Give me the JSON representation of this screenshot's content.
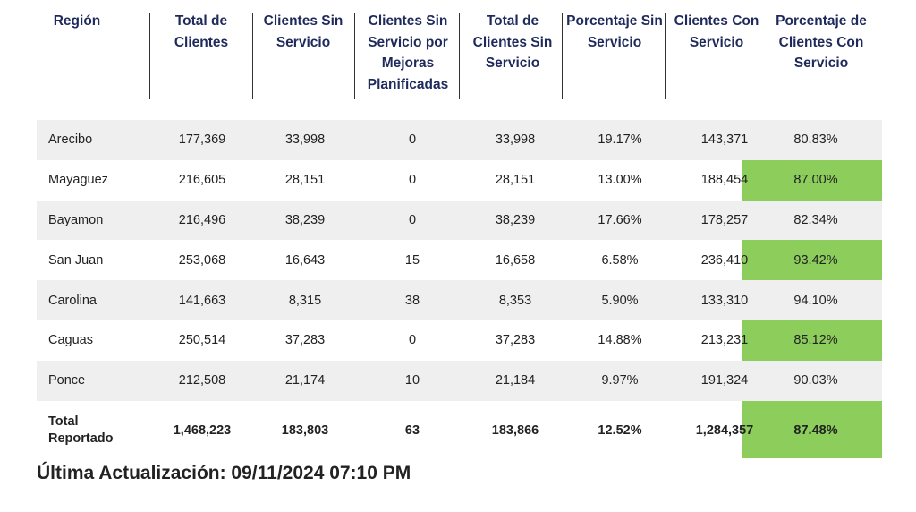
{
  "headers": [
    "Región",
    "Total de Clientes",
    "Clientes Sin Servicio",
    "Clientes Sin Servicio por Mejoras Planificadas",
    "Total de Clientes Sin Servicio",
    "Porcentaje Sin Servicio",
    "Clientes Con Servicio",
    "Porcentaje de Clientes Con Servicio"
  ],
  "rows": [
    [
      "Arecibo",
      "177,369",
      "33,998",
      "0",
      "33,998",
      "19.17%",
      "143,371",
      "80.83%"
    ],
    [
      "Mayaguez",
      "216,605",
      "28,151",
      "0",
      "28,151",
      "13.00%",
      "188,454",
      "87.00%"
    ],
    [
      "Bayamon",
      "216,496",
      "38,239",
      "0",
      "38,239",
      "17.66%",
      "178,257",
      "82.34%"
    ],
    [
      "San Juan",
      "253,068",
      "16,643",
      "15",
      "16,658",
      "6.58%",
      "236,410",
      "93.42%"
    ],
    [
      "Carolina",
      "141,663",
      "8,315",
      "38",
      "8,353",
      "5.90%",
      "133,310",
      "94.10%"
    ],
    [
      "Caguas",
      "250,514",
      "37,283",
      "0",
      "37,283",
      "14.88%",
      "213,231",
      "85.12%"
    ],
    [
      "Ponce",
      "212,508",
      "21,174",
      "10",
      "21,184",
      "9.97%",
      "191,324",
      "90.03%"
    ]
  ],
  "total_row": [
    "Total Reportado",
    "1,468,223",
    "183,803",
    "63",
    "183,866",
    "12.52%",
    "1,284,357",
    "87.48%"
  ],
  "footer": "Última Actualización: 09/11/2024 07:10 PM",
  "colors": {
    "header_text": "#1f2a5c",
    "row_shade": "#efefef",
    "highlight_green": "#8ccd5c"
  }
}
